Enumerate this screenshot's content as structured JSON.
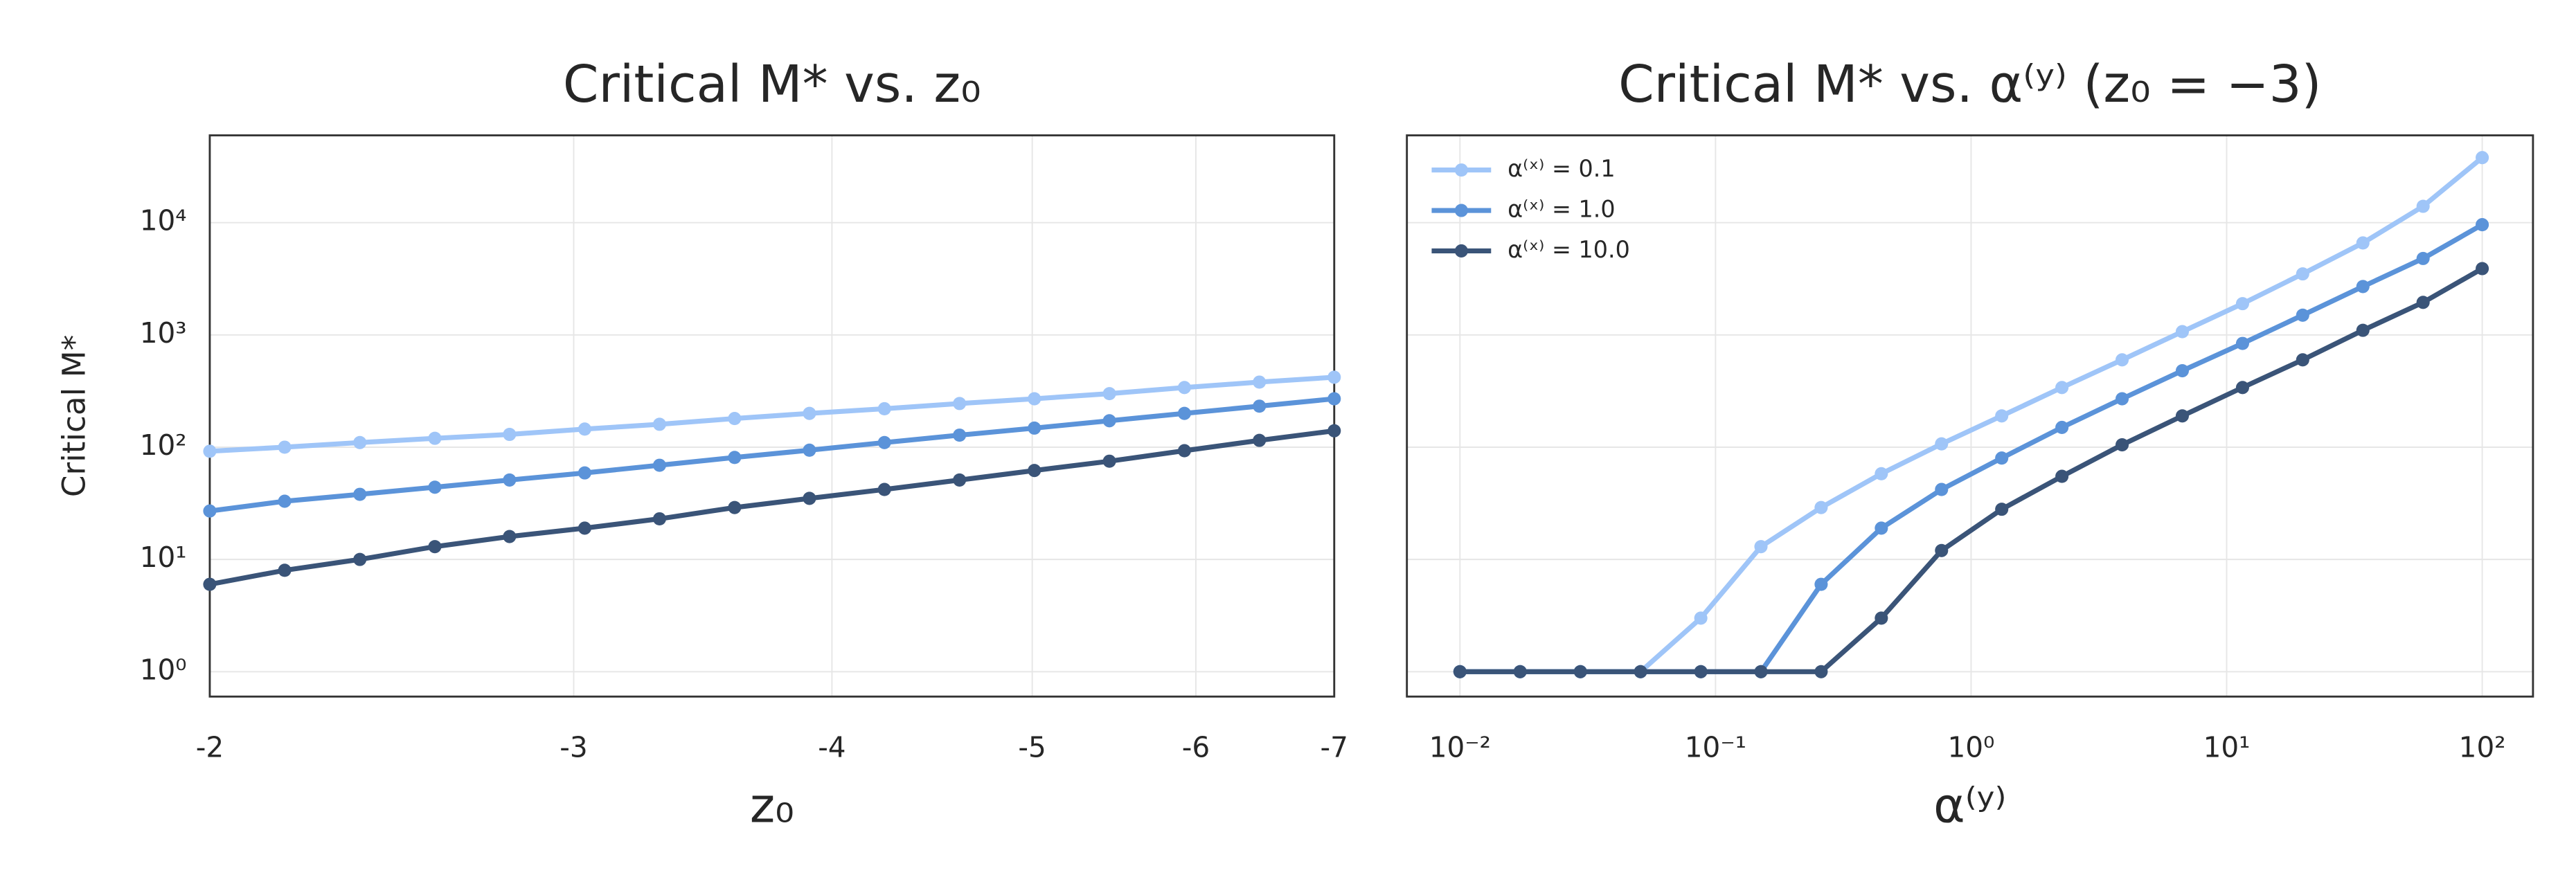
{
  "chart_data": [
    {
      "type": "line",
      "title": "Critical M* vs. z₀",
      "xlabel": "z₀",
      "ylabel": "Critical M*",
      "xscale": "log",
      "yscale": "log",
      "grid": true,
      "xlim": [
        -2,
        -7
      ],
      "xticks": [
        -2,
        -3,
        -4,
        -5,
        -6,
        -7
      ],
      "ylim": [
        0.6,
        60000
      ],
      "yticks": [
        {
          "value": 1,
          "label": "10⁰"
        },
        {
          "value": 10,
          "label": "10¹"
        },
        {
          "value": 100,
          "label": "10²"
        },
        {
          "value": 1000,
          "label": "10³"
        },
        {
          "value": 10000,
          "label": "10⁴"
        }
      ],
      "x": [
        -2,
        -2.174,
        -2.364,
        -2.57,
        -2.793,
        -3.037,
        -3.301,
        -3.589,
        -3.901,
        -4.241,
        -4.611,
        -5.012,
        -5.449,
        -5.924,
        -6.44,
        -7
      ],
      "series": [
        {
          "name": "α⁽ˣ⁾ = 0.1",
          "color": "#9fc5f8",
          "values": [
            92,
            100,
            110,
            120,
            130,
            145,
            160,
            180,
            200,
            220,
            245,
            270,
            300,
            340,
            380,
            420
          ]
        },
        {
          "name": "α⁽ˣ⁾ = 1.0",
          "color": "#5b93d9",
          "values": [
            27,
            33,
            38,
            44,
            51,
            59,
            69,
            81,
            94,
            110,
            128,
            148,
            172,
            200,
            232,
            270
          ]
        },
        {
          "name": "α⁽ˣ⁾ = 10.0",
          "color": "#3a5478",
          "values": [
            6,
            8,
            10,
            13,
            16,
            19,
            23,
            29,
            35,
            42,
            51,
            62,
            75,
            93,
            115,
            140
          ]
        }
      ]
    },
    {
      "type": "line",
      "title": "Critical M* vs. α⁽ʸ⁾ (z₀ = −3)",
      "xlabel": "α⁽ʸ⁾",
      "xscale": "log",
      "yscale": "log",
      "grid": true,
      "sharey": true,
      "legend": "upper left",
      "xlim": [
        0.0062,
        158
      ],
      "xticks": [
        {
          "value": 0.01,
          "label": "10⁻²"
        },
        {
          "value": 0.1,
          "label": "10⁻¹"
        },
        {
          "value": 1,
          "label": "10⁰"
        },
        {
          "value": 10,
          "label": "10¹"
        },
        {
          "value": 100,
          "label": "10²"
        }
      ],
      "ylim": [
        0.6,
        60000
      ],
      "x": [
        0.01,
        0.0172,
        0.0296,
        0.0509,
        0.0876,
        0.1506,
        0.259,
        0.4455,
        0.7663,
        1.318,
        2.267,
        3.899,
        6.707,
        11.54,
        19.84,
        34.13,
        58.7,
        100
      ],
      "series": [
        {
          "name": "α⁽ˣ⁾ = 0.1",
          "color": "#9fc5f8",
          "values": [
            1,
            1,
            1,
            1,
            3,
            13,
            29,
            58,
            107,
            190,
            340,
            600,
            1070,
            1900,
            3500,
            6600,
            14000,
            38000
          ]
        },
        {
          "name": "α⁽ˣ⁾ = 1.0",
          "color": "#5b93d9",
          "values": [
            1,
            1,
            1,
            1,
            1,
            1,
            6,
            19,
            42,
            80,
            150,
            270,
            480,
            840,
            1500,
            2700,
            4800,
            9600
          ]
        },
        {
          "name": "α⁽ˣ⁾ = 10.0",
          "color": "#3a5478",
          "values": [
            1,
            1,
            1,
            1,
            1,
            1,
            1,
            3,
            12,
            28,
            55,
            105,
            190,
            340,
            600,
            1100,
            1950,
            3900
          ]
        }
      ]
    }
  ]
}
